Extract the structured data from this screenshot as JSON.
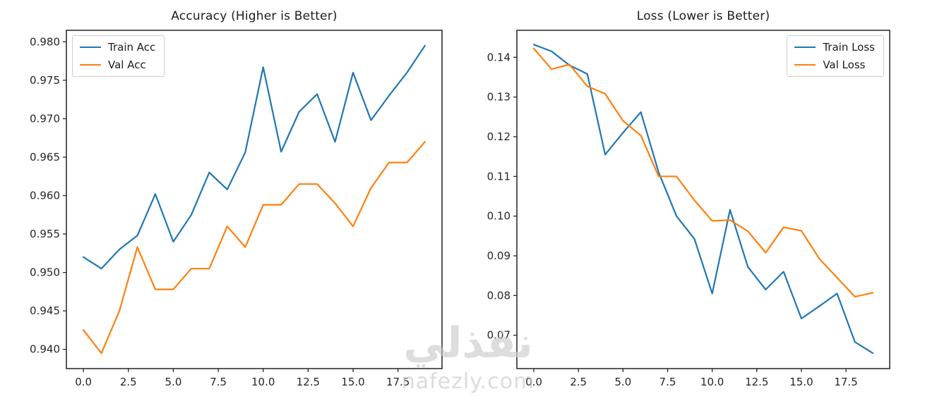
{
  "figure": {
    "background": "#ffffff",
    "spine_color": "#222222",
    "tick_color": "#262626",
    "label_color": "#262626"
  },
  "chart_data": [
    {
      "type": "line",
      "title": "Accuracy (Higher is Better)",
      "xlabel": "",
      "ylabel": "",
      "x": [
        0,
        1,
        2,
        3,
        4,
        5,
        6,
        7,
        8,
        9,
        10,
        11,
        12,
        13,
        14,
        15,
        16,
        17,
        18,
        19
      ],
      "series": [
        {
          "name": "Train Acc",
          "color": "#1f77b4",
          "values": [
            0.952,
            0.9505,
            0.953,
            0.9548,
            0.9602,
            0.954,
            0.9575,
            0.963,
            0.9608,
            0.9656,
            0.9767,
            0.9657,
            0.9709,
            0.9732,
            0.967,
            0.976,
            0.9698,
            0.973,
            0.976,
            0.9795
          ]
        },
        {
          "name": "Val Acc",
          "color": "#ff7f0e",
          "values": [
            0.9425,
            0.9395,
            0.945,
            0.9533,
            0.9478,
            0.9478,
            0.9505,
            0.9505,
            0.956,
            0.9533,
            0.9588,
            0.9588,
            0.9615,
            0.9615,
            0.959,
            0.956,
            0.961,
            0.9643,
            0.9643,
            0.967
          ]
        }
      ],
      "xlim": [
        -0.95,
        19.95
      ],
      "ylim": [
        0.9375,
        0.9815
      ],
      "xticks": [
        0,
        2.5,
        5,
        7.5,
        10,
        12.5,
        15,
        17.5
      ],
      "xtick_labels": [
        "0.0",
        "2.5",
        "5.0",
        "7.5",
        "10.0",
        "12.5",
        "15.0",
        "17.5"
      ],
      "yticks": [
        0.94,
        0.945,
        0.95,
        0.955,
        0.96,
        0.965,
        0.97,
        0.975,
        0.98
      ],
      "ytick_labels": [
        "0.940",
        "0.945",
        "0.950",
        "0.955",
        "0.960",
        "0.965",
        "0.970",
        "0.975",
        "0.980"
      ],
      "grid": false,
      "legend_position": "top-left"
    },
    {
      "type": "line",
      "title": "Loss (Lower is Better)",
      "xlabel": "",
      "ylabel": "",
      "x": [
        0,
        1,
        2,
        3,
        4,
        5,
        6,
        7,
        8,
        9,
        10,
        11,
        12,
        13,
        14,
        15,
        16,
        17,
        18,
        19
      ],
      "series": [
        {
          "name": "Train Loss",
          "color": "#1f77b4",
          "values": [
            0.1432,
            0.1415,
            0.138,
            0.1358,
            0.1155,
            0.121,
            0.1262,
            0.111,
            0.1,
            0.0943,
            0.0805,
            0.1016,
            0.0872,
            0.0815,
            0.086,
            0.0742,
            0.0773,
            0.0805,
            0.0683,
            0.0655
          ]
        },
        {
          "name": "Val Loss",
          "color": "#ff7f0e",
          "values": [
            0.1422,
            0.137,
            0.1382,
            0.1327,
            0.1308,
            0.124,
            0.1203,
            0.11,
            0.11,
            0.104,
            0.0988,
            0.099,
            0.0962,
            0.0908,
            0.0972,
            0.0963,
            0.0893,
            0.0845,
            0.0797,
            0.0807
          ]
        }
      ],
      "xlim": [
        -0.95,
        19.95
      ],
      "ylim": [
        0.0616,
        0.1468
      ],
      "xticks": [
        0,
        2.5,
        5,
        7.5,
        10,
        12.5,
        15,
        17.5
      ],
      "xtick_labels": [
        "0.0",
        "2.5",
        "5.0",
        "7.5",
        "10.0",
        "12.5",
        "15.0",
        "17.5"
      ],
      "yticks": [
        0.07,
        0.08,
        0.09,
        0.1,
        0.11,
        0.12,
        0.13,
        0.14
      ],
      "ytick_labels": [
        "0.07",
        "0.08",
        "0.09",
        "0.10",
        "0.11",
        "0.12",
        "0.13",
        "0.14"
      ],
      "grid": false,
      "legend_position": "top-right"
    }
  ],
  "watermark": {
    "logo_text": "نفذلي",
    "domain": "nafezly.com"
  }
}
